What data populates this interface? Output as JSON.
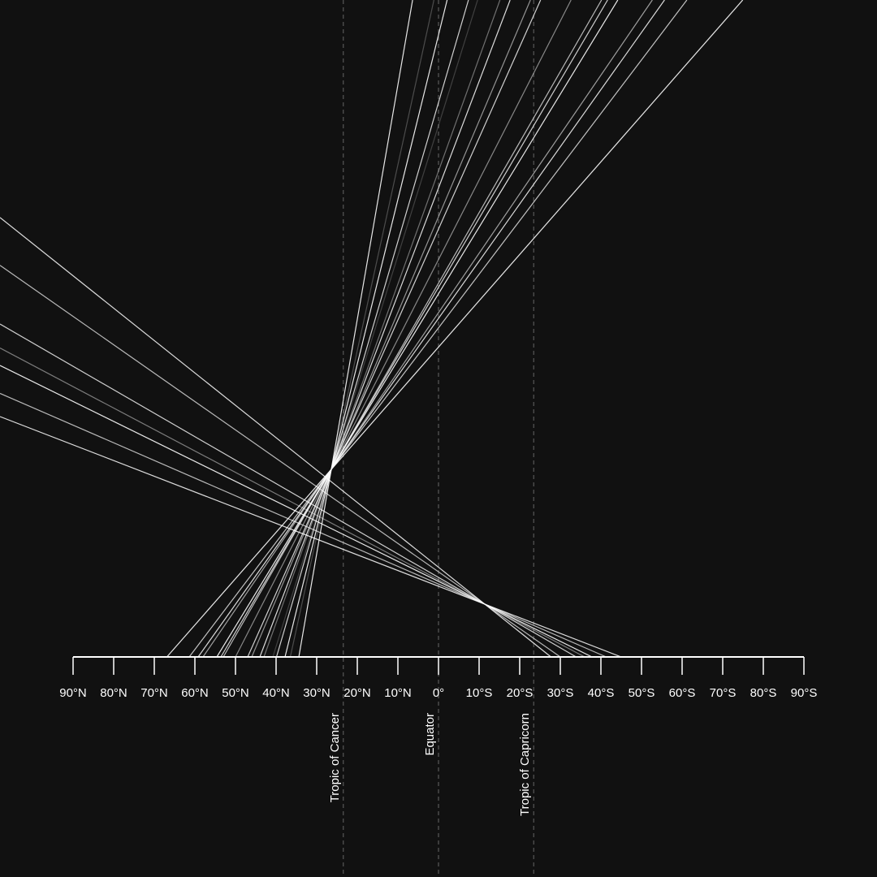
{
  "chart_data": {
    "type": "line",
    "title": "",
    "xlabel": "",
    "ylabel": "",
    "xlim": [
      90,
      -90
    ],
    "x_unit": "degrees latitude (north positive)",
    "grid": false,
    "legend": "none",
    "colors": {
      "background": "#111111",
      "axis": "#ffffff",
      "line": "#ffffff",
      "reference": "#666666"
    },
    "tick_values": [
      90,
      80,
      70,
      60,
      50,
      40,
      30,
      20,
      10,
      0,
      -10,
      -20,
      -30,
      -40,
      -50,
      -60,
      -70,
      -80,
      -90
    ],
    "tick_labels": [
      "90°N",
      "80°N",
      "70°N",
      "60°N",
      "50°N",
      "40°N",
      "30°N",
      "20°N",
      "10°N",
      "0°",
      "10°S",
      "20°S",
      "30°S",
      "40°S",
      "50°S",
      "60°S",
      "70°S",
      "80°S",
      "90°S"
    ],
    "reference_lines": [
      {
        "label": "Tropic of Cancer",
        "latitude": 23.44
      },
      {
        "label": "Equator",
        "latitude": 0
      },
      {
        "label": "Tropic of Capricorn",
        "latitude": -23.44
      }
    ],
    "series_description": "each line starts at a latitude on the axis and rises toward the point where it crosses the sub-solar latitude",
    "lines": [
      {
        "start_lat": 66.9,
        "opacity": 0.9
      },
      {
        "start_lat": 61.4,
        "opacity": 0.75
      },
      {
        "start_lat": 59.2,
        "opacity": 0.85
      },
      {
        "start_lat": 58.0,
        "opacity": 0.6
      },
      {
        "start_lat": 54.6,
        "opacity": 0.9
      },
      {
        "start_lat": 53.6,
        "opacity": 0.8
      },
      {
        "start_lat": 53.0,
        "opacity": 0.7
      },
      {
        "start_lat": 50.0,
        "opacity": 0.5
      },
      {
        "start_lat": 47.0,
        "opacity": 0.8
      },
      {
        "start_lat": 46.0,
        "opacity": 0.55
      },
      {
        "start_lat": 44.0,
        "opacity": 0.85
      },
      {
        "start_lat": 43.0,
        "opacity": 0.4
      },
      {
        "start_lat": 39.9,
        "opacity": 0.8
      },
      {
        "start_lat": 37.8,
        "opacity": 0.9
      },
      {
        "start_lat": 34.4,
        "opacity": 0.9
      },
      {
        "start_lat": 40.8,
        "opacity": 0.2
      },
      {
        "start_lat": 36.5,
        "opacity": 0.25
      },
      {
        "start_lat": -27.7,
        "opacity": 0.85
      },
      {
        "start_lat": -30.0,
        "opacity": 0.7
      },
      {
        "start_lat": -33.9,
        "opacity": 0.8
      },
      {
        "start_lat": -37.8,
        "opacity": 0.9
      },
      {
        "start_lat": -41.3,
        "opacity": 0.7
      },
      {
        "start_lat": -45.0,
        "opacity": 0.85
      },
      {
        "start_lat": -36.0,
        "opacity": 0.45
      }
    ]
  }
}
